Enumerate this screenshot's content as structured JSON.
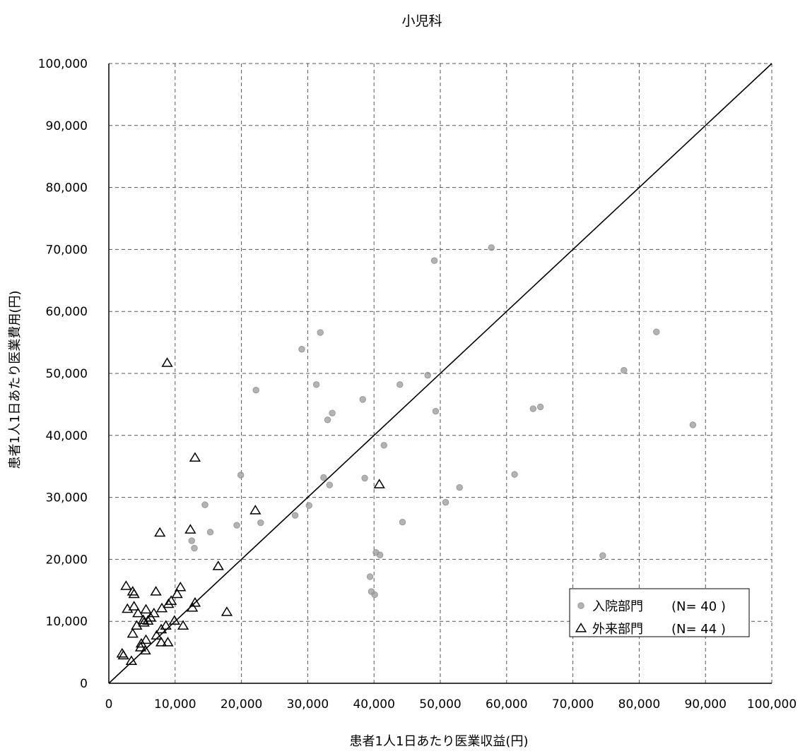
{
  "chart_data": {
    "type": "scatter",
    "title": "小児科",
    "xlabel": "患者1人1日あたり医業収益(円)",
    "ylabel": "患者1人1日あたり医業費用(円)",
    "xlim": [
      0,
      100000
    ],
    "ylim": [
      0,
      100000
    ],
    "x_ticks": [
      0,
      10000,
      20000,
      30000,
      40000,
      50000,
      60000,
      70000,
      80000,
      90000,
      100000
    ],
    "y_ticks": [
      0,
      10000,
      20000,
      30000,
      40000,
      50000,
      60000,
      70000,
      80000,
      90000,
      100000
    ],
    "x_tick_labels": [
      "0",
      "10,000",
      "20,000",
      "30,000",
      "40,000",
      "50,000",
      "60,000",
      "70,000",
      "80,000",
      "90,000",
      "100,000"
    ],
    "y_tick_labels": [
      "0",
      "10,000",
      "20,000",
      "30,000",
      "40,000",
      "50,000",
      "60,000",
      "70,000",
      "80,000",
      "90,000",
      "100,000"
    ],
    "grid": true,
    "reference_line": {
      "from": [
        0,
        0
      ],
      "to": [
        100000,
        100000
      ]
    },
    "legend_position": "bottom-right",
    "legend": [
      {
        "marker": "circle",
        "label": "入院部門",
        "n_text": "(N=  40 )"
      },
      {
        "marker": "triangle",
        "label": "外来部門",
        "n_text": "(N=  44 )"
      }
    ],
    "series": [
      {
        "name": "入院部門",
        "marker": "circle",
        "color": "#999999",
        "points": [
          [
            12500,
            23000
          ],
          [
            14500,
            28800
          ],
          [
            15300,
            24400
          ],
          [
            19300,
            25500
          ],
          [
            19900,
            33600
          ],
          [
            22200,
            47300
          ],
          [
            22900,
            25900
          ],
          [
            28100,
            27100
          ],
          [
            29100,
            53900
          ],
          [
            30200,
            28700
          ],
          [
            31300,
            48200
          ],
          [
            31900,
            56600
          ],
          [
            32400,
            33200
          ],
          [
            33000,
            42500
          ],
          [
            33300,
            32000
          ],
          [
            33700,
            43600
          ],
          [
            38600,
            33100
          ],
          [
            38300,
            45800
          ],
          [
            39400,
            17200
          ],
          [
            39600,
            14800
          ],
          [
            40100,
            14300
          ],
          [
            40300,
            21100
          ],
          [
            41500,
            38400
          ],
          [
            43900,
            48200
          ],
          [
            44300,
            26000
          ],
          [
            48100,
            49700
          ],
          [
            49100,
            68200
          ],
          [
            49300,
            43900
          ],
          [
            50800,
            29200
          ],
          [
            52900,
            31600
          ],
          [
            57700,
            70300
          ],
          [
            61200,
            33700
          ],
          [
            64000,
            44300
          ],
          [
            65100,
            44600
          ],
          [
            74500,
            20600
          ],
          [
            77700,
            50500
          ],
          [
            82600,
            56700
          ],
          [
            88100,
            41700
          ],
          [
            12900,
            21800
          ],
          [
            40900,
            20700
          ]
        ]
      },
      {
        "name": "外来部門",
        "marker": "triangle",
        "color": "#000000",
        "points": [
          [
            2000,
            4800
          ],
          [
            2200,
            4500
          ],
          [
            2600,
            15700
          ],
          [
            2800,
            12000
          ],
          [
            3400,
            3600
          ],
          [
            3600,
            8000
          ],
          [
            3600,
            14800
          ],
          [
            3800,
            12400
          ],
          [
            3800,
            14400
          ],
          [
            4200,
            9300
          ],
          [
            4400,
            11300
          ],
          [
            4800,
            5800
          ],
          [
            4900,
            6400
          ],
          [
            5300,
            9800
          ],
          [
            5500,
            5300
          ],
          [
            5600,
            7000
          ],
          [
            5600,
            11900
          ],
          [
            5900,
            10100
          ],
          [
            6300,
            10600
          ],
          [
            7100,
            14800
          ],
          [
            7200,
            7700
          ],
          [
            7700,
            24300
          ],
          [
            7900,
            8700
          ],
          [
            7900,
            6600
          ],
          [
            8000,
            12100
          ],
          [
            8800,
            51700
          ],
          [
            8600,
            9300
          ],
          [
            8900,
            6600
          ],
          [
            9000,
            12800
          ],
          [
            9400,
            13300
          ],
          [
            9900,
            10100
          ],
          [
            10300,
            14400
          ],
          [
            10800,
            15500
          ],
          [
            11200,
            9300
          ],
          [
            12300,
            24800
          ],
          [
            12600,
            12200
          ],
          [
            13000,
            13000
          ],
          [
            13000,
            36400
          ],
          [
            16500,
            18900
          ],
          [
            17800,
            11500
          ],
          [
            22100,
            27900
          ],
          [
            40800,
            32100
          ],
          [
            5200,
            10200
          ],
          [
            6800,
            11300
          ]
        ]
      }
    ]
  }
}
